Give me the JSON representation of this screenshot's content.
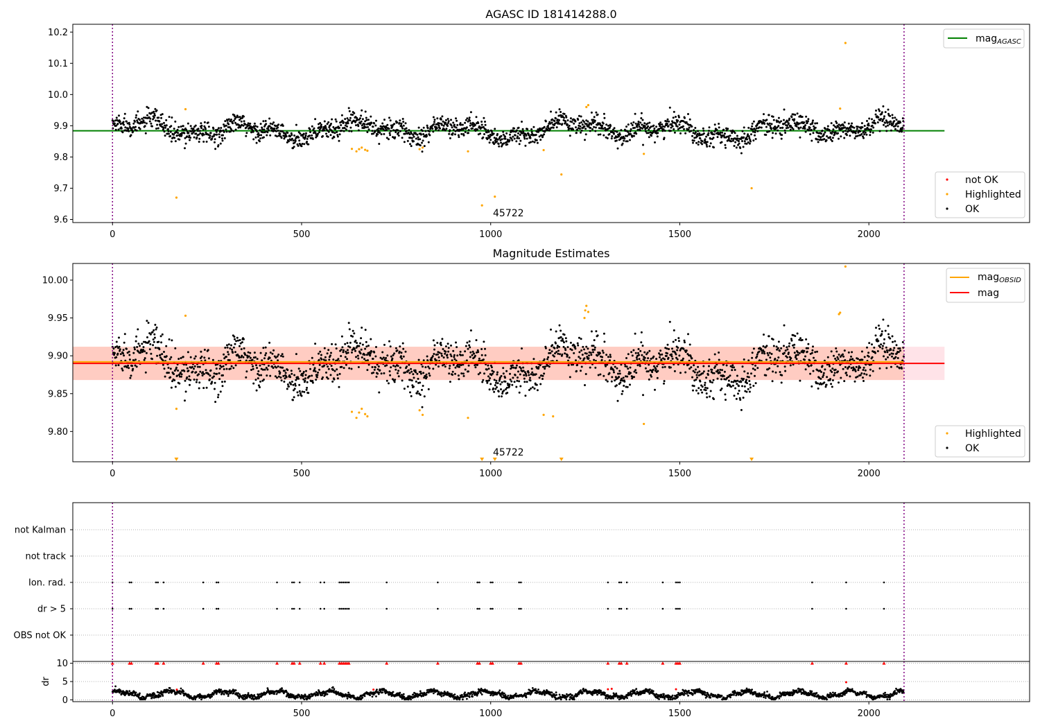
{
  "colors": {
    "ok": "#000000",
    "highlighted": "#ffa500",
    "not_ok": "#ff0000",
    "agasc_line": "#008000",
    "obsid_line": "#ffa500",
    "mag_line": "#ff0000",
    "mag_band": "#ffc0cb",
    "obsid_band": "#ffa07a",
    "boundary": "#800080"
  },
  "chart_data": [
    {
      "type": "scatter",
      "title": "AGASC ID 181414288.0",
      "xlim": [
        -105,
        2425
      ],
      "ylim": [
        9.59,
        10.225
      ],
      "xticks": [
        "0",
        "500",
        "1000",
        "1500",
        "2000"
      ],
      "yticks": [
        "9.6",
        "9.7",
        "9.8",
        "9.9",
        "10.0",
        "10.1",
        "10.2"
      ],
      "grid": false,
      "boundaries_x": [
        0,
        2093
      ],
      "mag_agasc": 9.884,
      "line_extent": [
        -105,
        2200
      ],
      "annotation": {
        "text": "45722",
        "x": 1003,
        "y": 9.615
      },
      "legend_top": {
        "placement": "top-right",
        "entries": [
          "mag_{AGASC}"
        ]
      },
      "legend_bottom": {
        "placement": "bottom-right",
        "entries": [
          "not OK",
          "Highlighted",
          "OK"
        ]
      },
      "series": [
        {
          "name": "OK",
          "n": 2093,
          "base": 9.887,
          "amp": 0.035,
          "noise": 0.016
        },
        {
          "name": "Highlighted",
          "x": [
            169,
            193,
            633,
            645,
            652,
            659,
            668,
            674,
            812,
            820,
            940,
            977,
            1011,
            1140,
            1187,
            1253,
            1258,
            1405,
            1690,
            1924,
            1938
          ],
          "y": [
            9.67,
            9.953,
            9.826,
            9.818,
            9.825,
            9.83,
            9.823,
            9.82,
            9.825,
            9.83,
            9.818,
            9.645,
            9.673,
            9.822,
            9.744,
            9.96,
            9.966,
            9.81,
            9.7,
            9.955,
            10.165
          ]
        },
        {
          "name": "not OK",
          "x": [],
          "y": []
        }
      ]
    },
    {
      "type": "scatter",
      "title": "Magnitude Estimates",
      "xlim": [
        -105,
        2425
      ],
      "ylim": [
        9.76,
        10.022
      ],
      "xticks": [
        "0",
        "500",
        "1000",
        "1500",
        "2000"
      ],
      "yticks": [
        "9.80",
        "9.85",
        "9.90",
        "9.95",
        "10.00"
      ],
      "grid": false,
      "boundaries_x": [
        0,
        2093
      ],
      "mag": 9.89,
      "mag_obsid": 9.892,
      "band_mag": [
        9.868,
        9.912
      ],
      "band_obsid": [
        9.868,
        9.912
      ],
      "band_obsid_extent": [
        -105,
        2093
      ],
      "line_extent": [
        -105,
        2200
      ],
      "annotation": {
        "text": "45722",
        "x": 1003,
        "y": 9.767
      },
      "offscale_markers_x": [
        169,
        977,
        1011,
        1187,
        1690
      ],
      "legend_top": {
        "placement": "top-right",
        "entries": [
          "mag_{OBSID}",
          "mag"
        ]
      },
      "legend_bottom": {
        "placement": "bottom-right",
        "entries": [
          "Highlighted",
          "OK"
        ]
      },
      "series": [
        {
          "name": "OK",
          "n": 2093,
          "base": 9.888,
          "amp": 0.027,
          "noise": 0.013
        },
        {
          "name": "Highlighted",
          "x": [
            169,
            193,
            633,
            645,
            652,
            659,
            668,
            674,
            812,
            820,
            940,
            1140,
            1165,
            1248,
            1250,
            1253,
            1258,
            1405,
            1921,
            1924,
            1938
          ],
          "y": [
            9.83,
            9.953,
            9.826,
            9.818,
            9.825,
            9.83,
            9.823,
            9.82,
            9.828,
            9.822,
            9.818,
            9.822,
            9.82,
            9.95,
            9.96,
            9.966,
            9.958,
            9.81,
            9.955,
            9.957,
            10.018
          ]
        }
      ]
    },
    {
      "type": "scatter",
      "title": "",
      "xlim": [
        -105,
        2425
      ],
      "categories": [
        "not Kalman",
        "not track",
        "Ion. rad.",
        "dr > 5",
        "OBS not OK"
      ],
      "boundaries_x": [
        0,
        2093
      ],
      "grid": true,
      "flag_x": [
        0,
        45,
        50,
        115,
        120,
        135,
        240,
        275,
        280,
        435,
        475,
        480,
        495,
        550,
        560,
        600,
        605,
        610,
        615,
        620,
        625,
        725,
        860,
        965,
        970,
        1000,
        1005,
        1075,
        1080,
        1310,
        1340,
        1345,
        1360,
        1455,
        1490,
        1495,
        1500,
        1850,
        1940,
        2040
      ]
    },
    {
      "type": "scatter",
      "title": "",
      "ylabel": "dr",
      "xlim": [
        -105,
        2425
      ],
      "ylim": [
        -0.5,
        10.5
      ],
      "xticks": [
        "0",
        "500",
        "1000",
        "1500",
        "2000"
      ],
      "yticks": [
        "0",
        "5",
        "10"
      ],
      "grid": true,
      "boundaries_x": [
        0,
        2093
      ],
      "series": [
        {
          "name": "dr",
          "n": 2093,
          "base": 1.5,
          "amp": 0.8,
          "noise": 0.35
        },
        {
          "name": "dr clipped",
          "y": 10
        },
        {
          "name": "dr high",
          "x": [
            170,
            690,
            1310,
            1320,
            1490,
            1940
          ],
          "y": [
            2.8,
            2.8,
            2.9,
            3.0,
            2.9,
            4.8
          ]
        }
      ]
    }
  ]
}
